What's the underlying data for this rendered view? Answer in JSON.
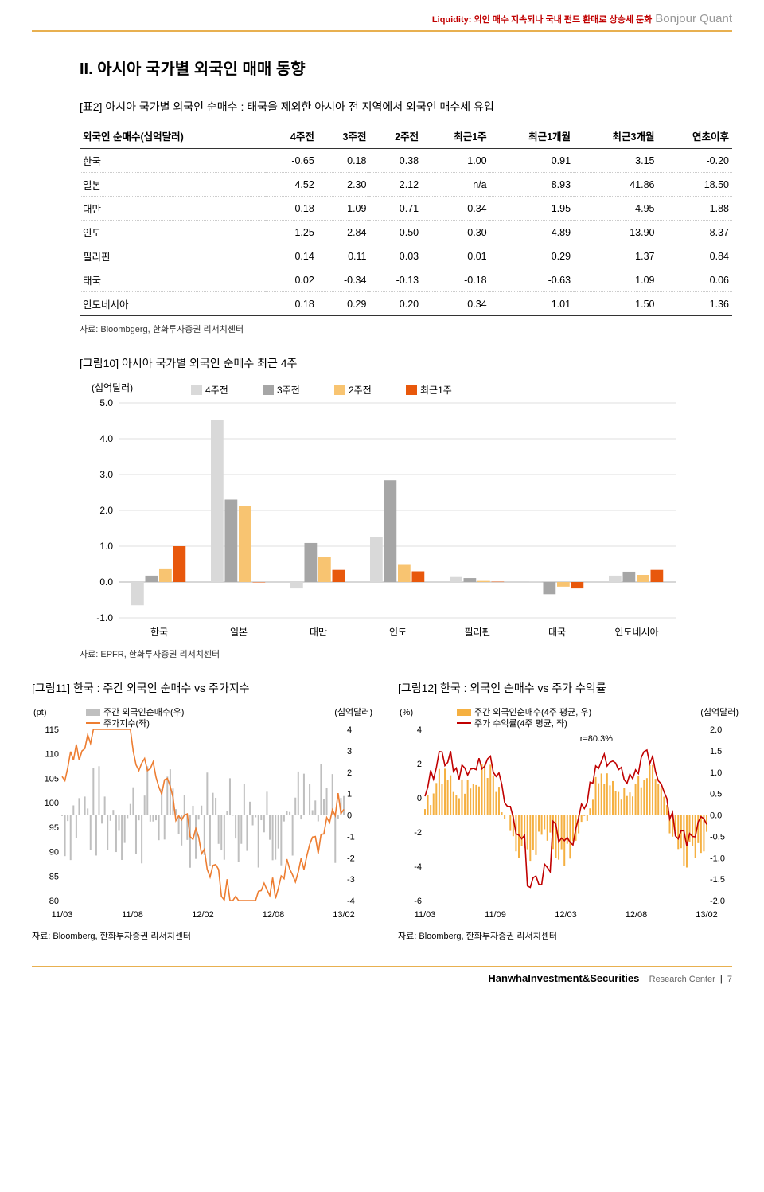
{
  "header": {
    "red_text": "Liquidity: 외인 매수 지속되나 국내 펀드 환매로 상승세 둔화",
    "gray_text": "Bonjour Quant"
  },
  "section": {
    "title": "II. 아시아 국가별 외국인 매매 동향",
    "table_title": "[표2]  아시아 국가별 외국인 순매수 : 태국을 제외한 아시아 전 지역에서 외국인 매수세 유입",
    "table": {
      "columns": [
        "외국인 순매수(십억달러)",
        "4주전",
        "3주전",
        "2주전",
        "최근1주",
        "최근1개월",
        "최근3개월",
        "연초이후"
      ],
      "rows": [
        [
          "한국",
          "-0.65",
          "0.18",
          "0.38",
          "1.00",
          "0.91",
          "3.15",
          "-0.20"
        ],
        [
          "일본",
          "4.52",
          "2.30",
          "2.12",
          "n/a",
          "8.93",
          "41.86",
          "18.50"
        ],
        [
          "대만",
          "-0.18",
          "1.09",
          "0.71",
          "0.34",
          "1.95",
          "4.95",
          "1.88"
        ],
        [
          "인도",
          "1.25",
          "2.84",
          "0.50",
          "0.30",
          "4.89",
          "13.90",
          "8.37"
        ],
        [
          "필리핀",
          "0.14",
          "0.11",
          "0.03",
          "0.01",
          "0.29",
          "1.37",
          "0.84"
        ],
        [
          "태국",
          "0.02",
          "-0.34",
          "-0.13",
          "-0.18",
          "-0.63",
          "1.09",
          "0.06"
        ],
        [
          "인도네시아",
          "0.18",
          "0.29",
          "0.20",
          "0.34",
          "1.01",
          "1.50",
          "1.36"
        ]
      ],
      "source": "자료: Bloombgerg, 한화투자증권 리서치센터"
    },
    "chart10": {
      "title": "[그림10]  아시아 국가별 외국인 순매수 최근 4주",
      "y_label": "(십억달러)",
      "type": "grouped-bar",
      "ylim": [
        -1.0,
        5.0
      ],
      "ytick_step": 1.0,
      "categories": [
        "한국",
        "일본",
        "대만",
        "인도",
        "필리핀",
        "태국",
        "인도네시아"
      ],
      "series": [
        {
          "name": "4주전",
          "color": "#d9d9d9",
          "values": [
            -0.65,
            4.52,
            -0.18,
            1.25,
            0.14,
            0.02,
            0.18
          ]
        },
        {
          "name": "3주전",
          "color": "#a6a6a6",
          "values": [
            0.18,
            2.3,
            1.09,
            2.84,
            0.11,
            -0.34,
            0.29
          ]
        },
        {
          "name": "2주전",
          "color": "#f8c471",
          "values": [
            0.38,
            2.12,
            0.71,
            0.5,
            0.03,
            -0.13,
            0.2
          ]
        },
        {
          "name": "최근1주",
          "color": "#e8580c",
          "values": [
            1.0,
            0.0,
            0.34,
            0.3,
            0.01,
            -0.18,
            0.34
          ]
        }
      ],
      "grid_color": "#bfbfbf",
      "bar_group_width": 0.7,
      "source": "자료: EPFR, 한화투자증권 리서치센터"
    },
    "chart11": {
      "title": "[그림11] 한국 : 주간 외국인 순매수 vs 주가지수",
      "type": "dual-axis-bar-line",
      "left_label": "(pt)",
      "right_label": "(십억달러)",
      "left_lim": [
        80,
        115
      ],
      "left_tick_step": 5,
      "right_lim": [
        -4,
        4
      ],
      "right_tick_step": 1,
      "x_ticks": [
        "11/03",
        "11/08",
        "12/02",
        "12/08",
        "13/02"
      ],
      "legend": [
        {
          "name": "주간 외국인순매수(우)",
          "kind": "bar",
          "color": "#bfbfbf"
        },
        {
          "name": "주가지수(좌)",
          "kind": "line",
          "color": "#ed7d31"
        }
      ],
      "source": "자료: Bloomberg, 한화투자증권 리서치센터"
    },
    "chart12": {
      "title": "[그림12] 한국 : 외국인 순매수 vs 주가 수익률",
      "type": "dual-axis-bar-line",
      "left_label": "(%)",
      "right_label": "(십억달러)",
      "left_lim": [
        -6,
        4
      ],
      "left_tick_step": 2,
      "right_lim": [
        -2.0,
        2.0
      ],
      "right_tick_step": 0.5,
      "x_ticks": [
        "11/03",
        "11/09",
        "12/03",
        "12/08",
        "13/02"
      ],
      "annotation": "r=80.3%",
      "legend": [
        {
          "name": "주간 외국인순매수(4주 평균, 우)",
          "kind": "bar",
          "color": "#f5b041"
        },
        {
          "name": "주가 수익률(4주 평균, 좌)",
          "kind": "line",
          "color": "#c00000"
        }
      ],
      "source": "자료: Bloomberg, 한화투자증권 리서치센터"
    }
  },
  "footer": {
    "brand": "HanwhaInvestment&Securities",
    "center": "Research Center",
    "page": "7"
  }
}
